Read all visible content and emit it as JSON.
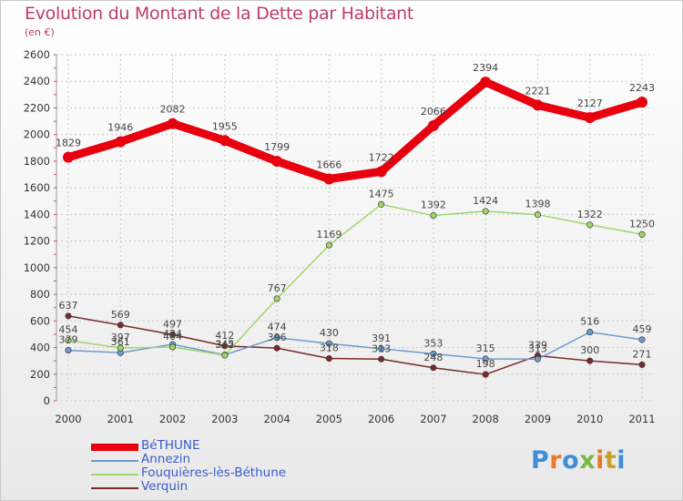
{
  "title": "Evolution du Montant de la Dette par Habitant",
  "subtitle": "(en €)",
  "logo": {
    "text": "Proxiti",
    "colors": [
      "#3f8ed8",
      "#e8782a",
      "#3f8ed8",
      "#7ab648",
      "#e8782a",
      "#c8a030",
      "#3f8ed8"
    ]
  },
  "chart_data": {
    "type": "line",
    "x": [
      "2000",
      "2001",
      "2002",
      "2003",
      "2004",
      "2005",
      "2006",
      "2007",
      "2008",
      "2009",
      "2010",
      "2011"
    ],
    "y_ticks": [
      "0",
      "200",
      "400",
      "600",
      "800",
      "1000",
      "1200",
      "1400",
      "1600",
      "1800",
      "2000",
      "2200",
      "2400",
      "2600"
    ],
    "ylim": [
      0,
      2600
    ],
    "grid": true,
    "series": [
      {
        "name": "BéTHUNE",
        "color": "#e8000e",
        "values": [
          1829,
          1946,
          2082,
          1955,
          1799,
          1666,
          1722,
          2066,
          2394,
          2221,
          2127,
          2243
        ]
      },
      {
        "name": "Annezin",
        "color": "#6d9ccf",
        "values": [
          379,
          361,
          424,
          345,
          474,
          430,
          391,
          353,
          315,
          313,
          516,
          459
        ]
      },
      {
        "name": "Fouquières-lès-Béthune",
        "color": "#9fd66b",
        "values": [
          454,
          397,
          404,
          342,
          767,
          1169,
          1475,
          1392,
          1424,
          1398,
          1322,
          1250
        ]
      },
      {
        "name": "Verquin",
        "color": "#7a2a2a",
        "values": [
          637,
          569,
          497,
          412,
          396,
          318,
          313,
          248,
          198,
          339,
          300,
          271
        ]
      }
    ]
  }
}
